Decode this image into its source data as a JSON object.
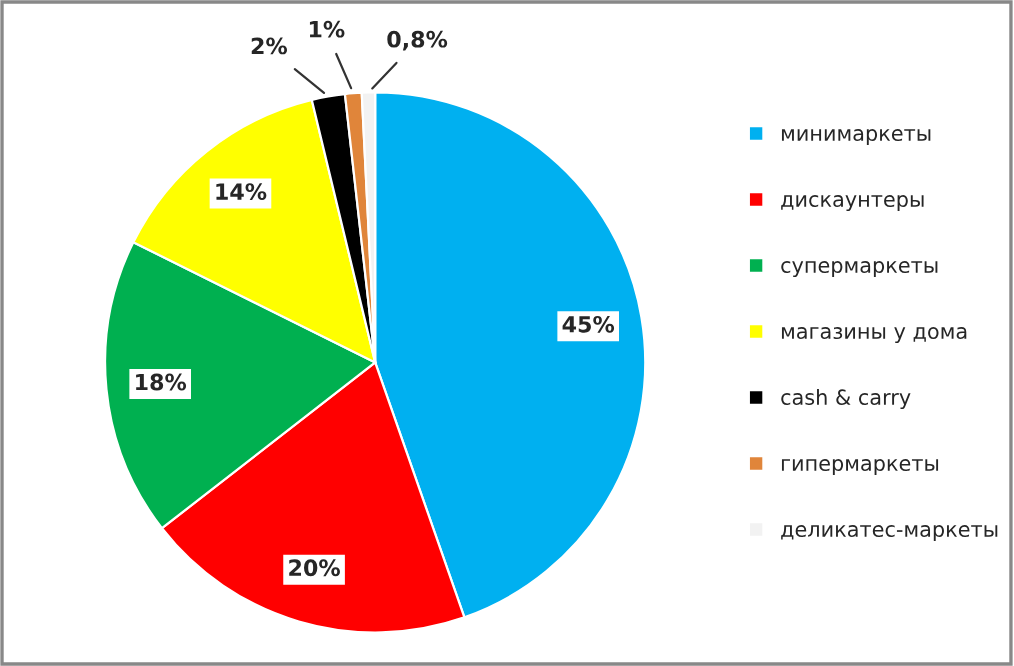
{
  "chart_data": {
    "type": "pie",
    "categories": [
      "минимаркеты",
      "дискаунтеры",
      "супермаркеты",
      "магазины у дома",
      "cash & carry",
      "гипермаркеты",
      "деликатес-маркеты"
    ],
    "values": [
      45,
      20,
      18,
      14,
      2,
      1,
      0.8
    ],
    "value_labels": [
      "45%",
      "20%",
      "18%",
      "14%",
      "2%",
      "1%",
      "0,8%"
    ],
    "colors": [
      "#00b0f0",
      "#ff0000",
      "#00b050",
      "#ffff00",
      "#000000",
      "#e0853a",
      "#f2f2f2"
    ],
    "legend": "right"
  }
}
